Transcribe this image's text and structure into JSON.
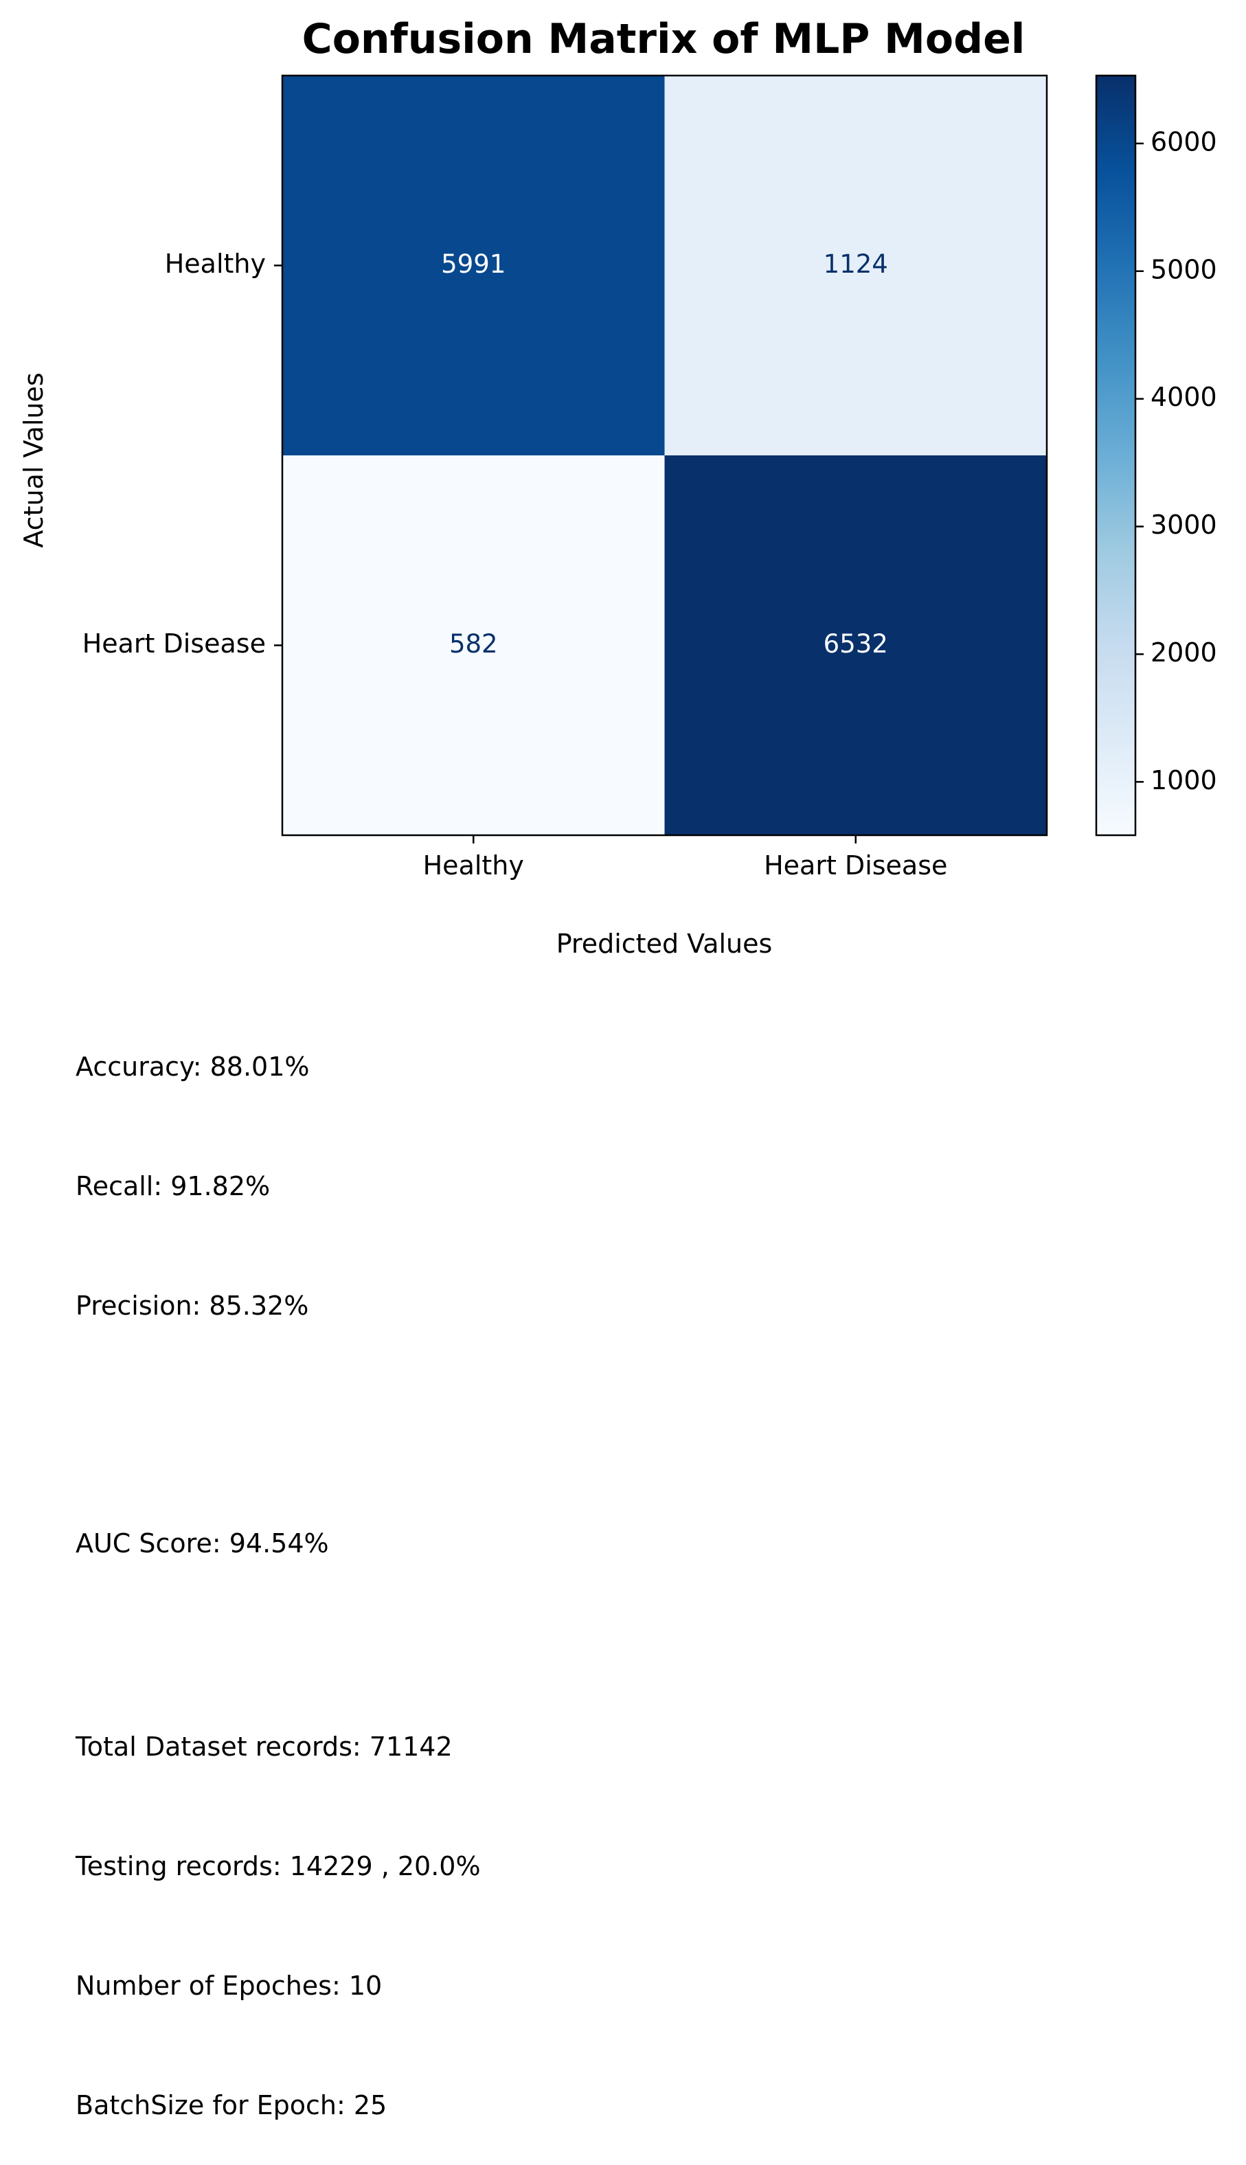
{
  "chart_data": {
    "type": "heatmap",
    "title": "Confusion Matrix of MLP Model",
    "xlabel": "Predicted Values",
    "ylabel": "Actual Values",
    "x_categories": [
      "Healthy",
      "Heart Disease"
    ],
    "y_categories": [
      "Healthy",
      "Heart Disease"
    ],
    "matrix": [
      [
        5991,
        1124
      ],
      [
        582,
        6532
      ]
    ],
    "colormap": "Blues",
    "colorbar": {
      "range": [
        582,
        6532
      ],
      "ticks": [
        1000,
        2000,
        3000,
        4000,
        5000,
        6000
      ],
      "tick_labels": [
        "1000",
        "2000",
        "3000",
        "4000",
        "5000",
        "6000"
      ]
    },
    "cell_text_colors": {
      "dark": "#ffffff",
      "light": "#08306b"
    }
  },
  "metrics": {
    "accuracy": "Accuracy: 88.01%",
    "recall": "Recall: 91.82%",
    "precision": "Precision: 85.32%",
    "auc": "AUC Score: 94.54%",
    "total_records": "Total Dataset records: 71142",
    "testing_records": "Testing records: 14229 , 20.0%",
    "epochs": "Number of Epoches: 10",
    "batch_size": "BatchSize for Epoch: 25"
  }
}
